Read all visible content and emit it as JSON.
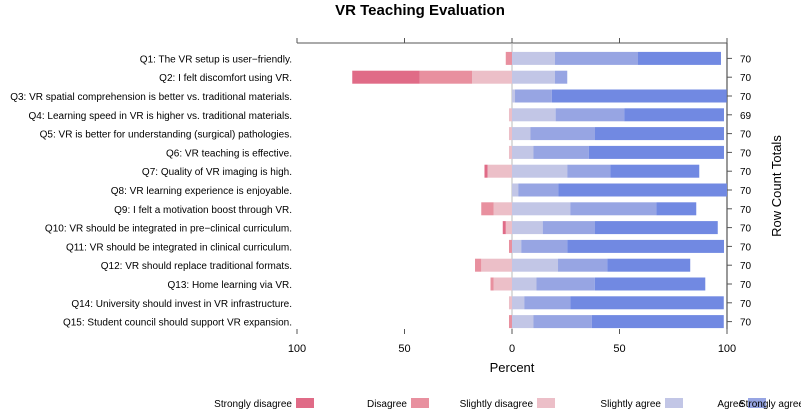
{
  "chart_data": {
    "type": "bar",
    "subtype": "diverging-stacked",
    "title": "VR Teaching Evaluation",
    "xlabel": "Percent",
    "ylabel_right": "Row Count Totals",
    "xlim": [
      -100,
      100
    ],
    "xticks": [
      {
        "v": -100,
        "label": "100"
      },
      {
        "v": -50,
        "label": "50"
      },
      {
        "v": 0,
        "label": "0"
      },
      {
        "v": 50,
        "label": "50"
      },
      {
        "v": 100,
        "label": "100"
      }
    ],
    "legend_position": "bottom",
    "series": [
      {
        "name": "Strongly disagree",
        "color": "#e06b87",
        "side": "negative"
      },
      {
        "name": "Disagree",
        "color": "#e8909f",
        "side": "negative"
      },
      {
        "name": "Slightly disagree",
        "color": "#ecbfc8",
        "side": "negative"
      },
      {
        "name": "Slightly agree",
        "color": "#c2c6e6",
        "side": "positive"
      },
      {
        "name": "Agree",
        "color": "#97a5e3",
        "side": "positive"
      },
      {
        "name": "Strongly agree",
        "color": "#7189e2",
        "side": "positive"
      }
    ],
    "categories": [
      {
        "label": "Q1: The VR setup is user−friendly.",
        "total": "70",
        "values": [
          0,
          2.9,
          0,
          20.0,
          38.6,
          38.6
        ]
      },
      {
        "label": "Q2: I felt discomfort using VR.",
        "total": "70",
        "values": [
          31.4,
          24.3,
          18.6,
          20.0,
          5.7,
          0
        ]
      },
      {
        "label": "Q3: VR spatial comprehension is better vs. traditional materials.",
        "total": "70",
        "values": [
          0,
          0,
          0,
          1.4,
          17.1,
          81.4
        ]
      },
      {
        "label": "Q4: Learning speed in VR is higher vs. traditional materials.",
        "total": "69",
        "values": [
          0,
          0,
          1.4,
          20.3,
          31.9,
          46.4
        ]
      },
      {
        "label": "Q5: VR is better for understanding (surgical) pathologies.",
        "total": "70",
        "values": [
          0,
          0,
          1.4,
          8.6,
          30.0,
          60.0
        ]
      },
      {
        "label": "Q6: VR teaching is effective.",
        "total": "70",
        "values": [
          0,
          0,
          1.4,
          10.0,
          25.7,
          62.9
        ]
      },
      {
        "label": "Q7: Quality of VR imaging is high.",
        "total": "70",
        "values": [
          1.4,
          0,
          11.4,
          25.7,
          20.0,
          41.4
        ]
      },
      {
        "label": "Q8: VR learning experience is enjoyable.",
        "total": "70",
        "values": [
          0,
          0,
          0,
          2.9,
          18.6,
          78.6
        ]
      },
      {
        "label": "Q9: I felt a motivation boost through VR.",
        "total": "70",
        "values": [
          0,
          5.7,
          8.6,
          27.1,
          40.0,
          18.6
        ]
      },
      {
        "label": "Q10: VR should be integrated in pre−clinical curriculum.",
        "total": "70",
        "values": [
          1.4,
          0,
          2.9,
          14.3,
          24.3,
          57.1
        ]
      },
      {
        "label": "Q11: VR should be integrated in clinical curriculum.",
        "total": "70",
        "values": [
          0,
          1.4,
          0,
          4.3,
          21.4,
          72.9
        ]
      },
      {
        "label": "Q12: VR should replace traditional formats.",
        "total": "70",
        "values": [
          0,
          2.9,
          14.3,
          21.4,
          22.9,
          38.6
        ]
      },
      {
        "label": "Q13: Home learning via VR.",
        "total": "70",
        "values": [
          0,
          1.4,
          8.6,
          11.4,
          27.1,
          51.4
        ]
      },
      {
        "label": "Q14: University should invest in VR infrastructure.",
        "total": "70",
        "values": [
          0,
          0,
          1.4,
          5.7,
          21.4,
          71.4
        ]
      },
      {
        "label": "Q15: Student council should support VR expansion.",
        "total": "70",
        "values": [
          0,
          1.4,
          0,
          10.0,
          27.1,
          61.4
        ]
      }
    ]
  }
}
